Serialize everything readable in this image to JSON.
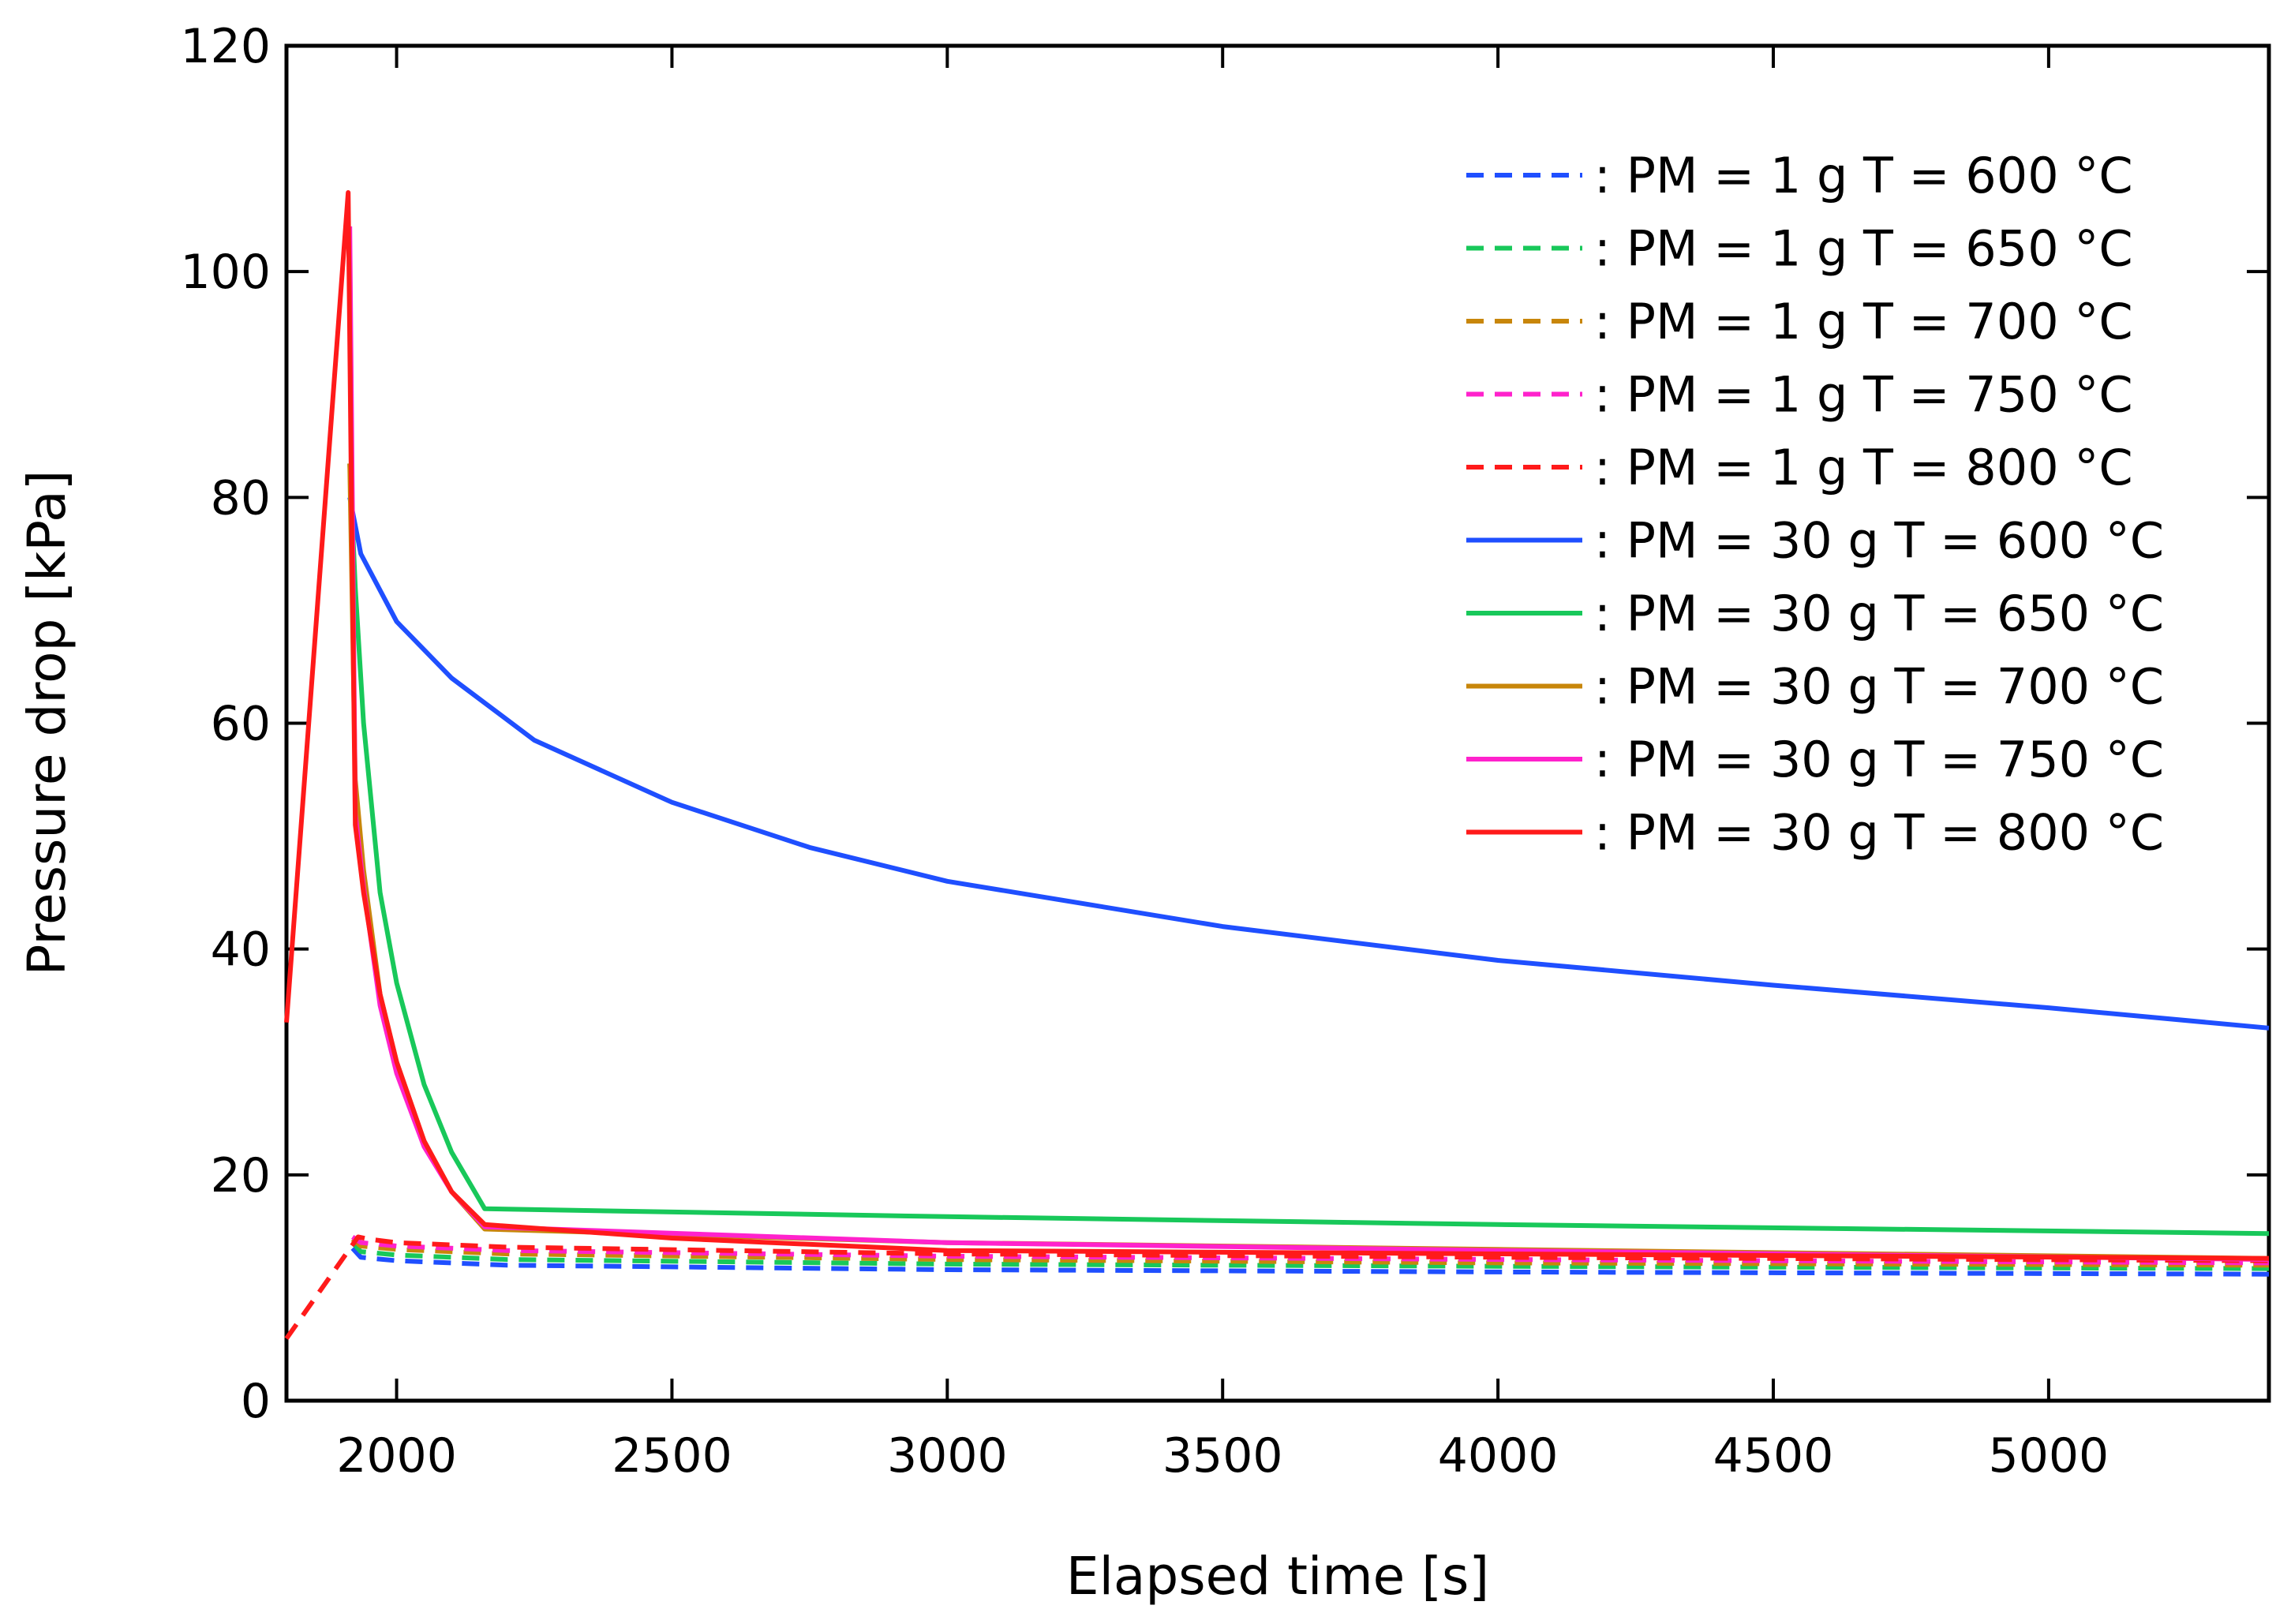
{
  "chart_data": {
    "type": "line",
    "title": "",
    "xlabel": "Elapsed time [s]",
    "ylabel": "Pressure drop [kPa]",
    "xlim": [
      1800,
      5400
    ],
    "ylim": [
      0,
      120
    ],
    "xticks": [
      2000,
      2500,
      3000,
      3500,
      4000,
      4500,
      5000
    ],
    "yticks": [
      0,
      20,
      40,
      60,
      80,
      100,
      120
    ],
    "grid": false,
    "legend_position": "top-right",
    "series": [
      {
        "name": ": PM = 1 g T = 600 °C",
        "color": "#1f4fff",
        "dash": "dashed",
        "x": [
          1920,
          1935,
          2000,
          2200,
          3000,
          4000,
          5400
        ],
        "y": [
          13.5,
          12.7,
          12.4,
          12.0,
          11.6,
          11.4,
          11.2
        ]
      },
      {
        "name": ": PM = 1 g T = 650 °C",
        "color": "#18c85a",
        "dash": "dashed",
        "x": [
          1920,
          1935,
          2000,
          2200,
          3000,
          4000,
          5400
        ],
        "y": [
          14.0,
          13.2,
          12.9,
          12.5,
          12.1,
          11.9,
          11.7
        ]
      },
      {
        "name": ": PM = 1 g T = 700 °C",
        "color": "#c8860a",
        "dash": "dashed",
        "x": [
          1920,
          1935,
          2000,
          2200,
          3000,
          4000,
          5400
        ],
        "y": [
          14.3,
          13.7,
          13.4,
          13.0,
          12.5,
          12.2,
          12.0
        ]
      },
      {
        "name": ": PM = 1 g T = 750 °C",
        "color": "#ff22cc",
        "dash": "dashed",
        "x": [
          1920,
          1935,
          2000,
          2200,
          3000,
          4000,
          5400
        ],
        "y": [
          14.5,
          14.0,
          13.7,
          13.3,
          12.8,
          12.5,
          12.2
        ]
      },
      {
        "name": ": PM = 1 g T = 800 °C",
        "color": "#ff1a1a",
        "dash": "dashed",
        "x": [
          1800,
          1930,
          1950,
          2000,
          2200,
          3000,
          4000,
          5400
        ],
        "y": [
          5.5,
          14.5,
          14.3,
          14.0,
          13.6,
          13.0,
          12.7,
          12.4
        ]
      },
      {
        "name": ": PM = 30 g T = 600 °C",
        "color": "#1f4fff",
        "dash": "solid",
        "x": [
          1915,
          1935,
          2000,
          2100,
          2250,
          2500,
          2750,
          3000,
          3500,
          4000,
          4500,
          5000,
          5400
        ],
        "y": [
          80,
          75,
          69,
          64,
          58.5,
          53,
          49,
          46,
          42,
          39,
          36.8,
          34.8,
          33
        ]
      },
      {
        "name": ": PM = 30 g T = 650 °C",
        "color": "#18c85a",
        "dash": "solid",
        "x": [
          1915,
          1925,
          1940,
          1970,
          2000,
          2050,
          2100,
          2160,
          3000,
          4000,
          5400
        ],
        "y": [
          83,
          72,
          60,
          45,
          37,
          28,
          22,
          17,
          16.3,
          15.6,
          14.8
        ]
      },
      {
        "name": ": PM = 30 g T = 700 °C",
        "color": "#c8860a",
        "dash": "solid",
        "x": [
          1915,
          1925,
          1940,
          1970,
          2000,
          2050,
          2100,
          2160,
          3000,
          4000,
          5400
        ],
        "y": [
          83,
          55,
          47,
          36,
          30,
          23,
          18.5,
          15.2,
          14.0,
          13.4,
          12.6
        ]
      },
      {
        "name": ": PM = 30 g T = 750 °C",
        "color": "#ff22cc",
        "dash": "solid",
        "x": [
          1915,
          1925,
          1940,
          1970,
          2000,
          2050,
          2100,
          2160,
          3000,
          4000,
          5400
        ],
        "y": [
          104,
          52,
          45.5,
          35,
          29,
          22.5,
          18.5,
          15.4,
          14.0,
          13.3,
          12.5
        ]
      },
      {
        "name": ": PM = 30 g T = 800 °C",
        "color": "#ff1a1a",
        "dash": "solid",
        "x": [
          1800,
          1912,
          1918,
          1925,
          1940,
          1970,
          2000,
          2050,
          2100,
          2160,
          2500,
          3000,
          4000,
          5400
        ],
        "y": [
          33.5,
          107,
          80,
          51,
          45,
          36,
          30,
          23,
          18.5,
          15.6,
          14.4,
          13.3,
          13.0,
          12.6
        ]
      }
    ]
  }
}
